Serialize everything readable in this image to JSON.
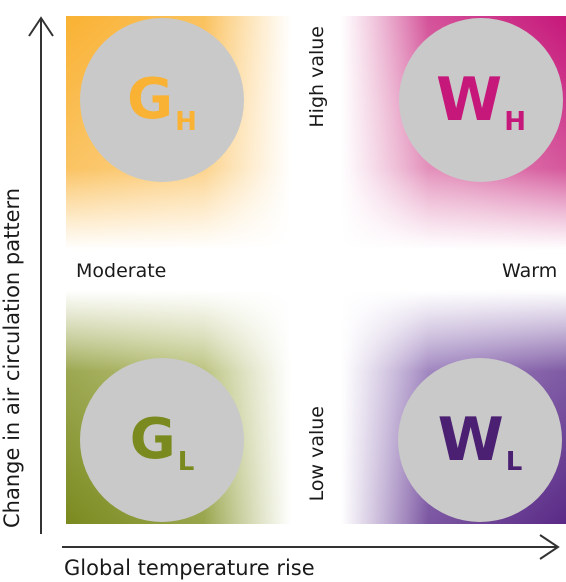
{
  "axes": {
    "y_label": "Change in air circulation pattern",
    "x_label": "Global temperature rise"
  },
  "center_labels": {
    "high": "High value",
    "low": "Low value",
    "left": "Moderate",
    "right": "Warm"
  },
  "scenarios": {
    "g_high": {
      "letter": "G",
      "sub": "H",
      "color": "#f9b233"
    },
    "w_high": {
      "letter": "W",
      "sub": "H",
      "color": "#c6177a"
    },
    "g_low": {
      "letter": "G",
      "sub": "L",
      "color": "#7a8a1e"
    },
    "w_low": {
      "letter": "W",
      "sub": "L",
      "color": "#4b1f72"
    }
  },
  "colors": {
    "circle": "#c9c9c9",
    "arrow": "#333333"
  }
}
